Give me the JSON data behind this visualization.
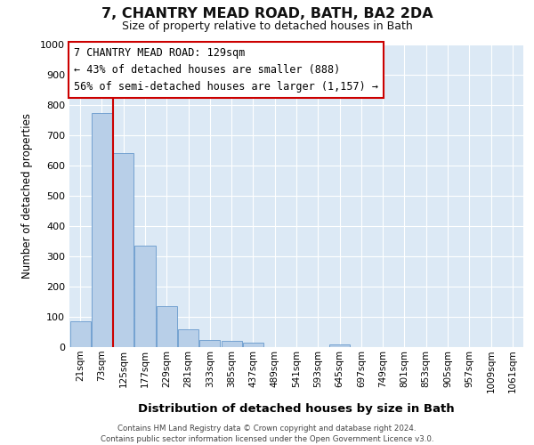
{
  "title": "7, CHANTRY MEAD ROAD, BATH, BA2 2DA",
  "subtitle": "Size of property relative to detached houses in Bath",
  "xlabel": "Distribution of detached houses by size in Bath",
  "ylabel": "Number of detached properties",
  "bar_labels": [
    "21sqm",
    "73sqm",
    "125sqm",
    "177sqm",
    "229sqm",
    "281sqm",
    "333sqm",
    "385sqm",
    "437sqm",
    "489sqm",
    "541sqm",
    "593sqm",
    "645sqm",
    "697sqm",
    "749sqm",
    "801sqm",
    "853sqm",
    "905sqm",
    "957sqm",
    "1009sqm",
    "1061sqm"
  ],
  "bar_values": [
    85,
    775,
    640,
    335,
    135,
    58,
    25,
    20,
    15,
    0,
    0,
    0,
    10,
    0,
    0,
    0,
    0,
    0,
    0,
    0,
    0
  ],
  "bar_color": "#b8cfe8",
  "bar_edge_color": "#6699cc",
  "vline_x_index": 2,
  "vline_color": "#cc0000",
  "annotation_text": "7 CHANTRY MEAD ROAD: 129sqm\n← 43% of detached houses are smaller (888)\n56% of semi-detached houses are larger (1,157) →",
  "annotation_box_color": "#ffffff",
  "annotation_border_color": "#cc0000",
  "ylim": [
    0,
    1000
  ],
  "yticks": [
    0,
    100,
    200,
    300,
    400,
    500,
    600,
    700,
    800,
    900,
    1000
  ],
  "fig_bg_color": "#ffffff",
  "plot_bg_color": "#dce9f5",
  "footer_line1": "Contains HM Land Registry data © Crown copyright and database right 2024.",
  "footer_line2": "Contains public sector information licensed under the Open Government Licence v3.0."
}
